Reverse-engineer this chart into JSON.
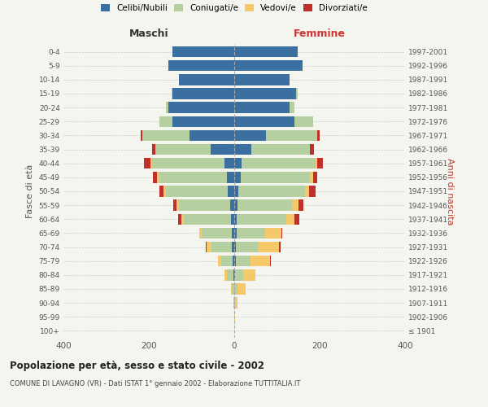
{
  "age_groups": [
    "100+",
    "95-99",
    "90-94",
    "85-89",
    "80-84",
    "75-79",
    "70-74",
    "65-69",
    "60-64",
    "55-59",
    "50-54",
    "45-49",
    "40-44",
    "35-39",
    "30-34",
    "25-29",
    "20-24",
    "15-19",
    "10-14",
    "5-9",
    "0-4"
  ],
  "birth_years": [
    "≤ 1901",
    "1902-1906",
    "1907-1911",
    "1912-1916",
    "1917-1921",
    "1922-1926",
    "1927-1931",
    "1932-1936",
    "1937-1941",
    "1942-1946",
    "1947-1951",
    "1952-1956",
    "1957-1961",
    "1962-1966",
    "1967-1971",
    "1972-1976",
    "1977-1981",
    "1982-1986",
    "1987-1991",
    "1992-1996",
    "1997-2001"
  ],
  "maschi": {
    "celibi": [
      0,
      0,
      0,
      0,
      2,
      3,
      5,
      5,
      8,
      10,
      15,
      18,
      22,
      55,
      105,
      145,
      155,
      145,
      130,
      155,
      145
    ],
    "coniugati": [
      0,
      0,
      1,
      5,
      15,
      28,
      48,
      72,
      110,
      120,
      145,
      158,
      170,
      130,
      110,
      30,
      5,
      2,
      0,
      0,
      0
    ],
    "vedovi": [
      0,
      0,
      0,
      2,
      5,
      8,
      12,
      5,
      5,
      5,
      5,
      5,
      5,
      0,
      0,
      0,
      0,
      0,
      0,
      0,
      0
    ],
    "divorziati": [
      0,
      0,
      0,
      0,
      0,
      0,
      2,
      0,
      8,
      8,
      10,
      10,
      15,
      8,
      5,
      0,
      0,
      0,
      0,
      0,
      0
    ]
  },
  "femmine": {
    "nubili": [
      0,
      0,
      0,
      0,
      2,
      3,
      4,
      5,
      6,
      8,
      10,
      15,
      18,
      40,
      75,
      140,
      130,
      145,
      130,
      160,
      148
    ],
    "coniugate": [
      0,
      0,
      2,
      8,
      18,
      35,
      52,
      68,
      115,
      128,
      155,
      162,
      172,
      138,
      120,
      45,
      10,
      3,
      0,
      0,
      0
    ],
    "vedove": [
      0,
      1,
      5,
      18,
      30,
      45,
      48,
      38,
      20,
      15,
      10,
      8,
      5,
      0,
      0,
      0,
      0,
      0,
      0,
      0,
      0
    ],
    "divorziate": [
      0,
      0,
      0,
      0,
      0,
      2,
      5,
      2,
      12,
      10,
      15,
      10,
      12,
      8,
      5,
      0,
      0,
      0,
      0,
      0,
      0
    ]
  },
  "colors": {
    "celibi_nubili": "#3a6fa0",
    "coniugati": "#b5cfa0",
    "vedovi": "#f5c96a",
    "divorziati": "#c0302a"
  },
  "title": "Popolazione per età, sesso e stato civile - 2002",
  "subtitle": "COMUNE DI LAVAGNO (VR) - Dati ISTAT 1° gennaio 2002 - Elaborazione TUTTITALIA.IT",
  "ylabel": "Fasce di età",
  "ylabel_right": "Anni di nascita",
  "xlabel_left": "Maschi",
  "xlabel_right": "Femmine",
  "xlim": 400,
  "background_color": "#f5f5f0",
  "plot_bg": "#f5f5f0",
  "grid_color": "#cccccc"
}
